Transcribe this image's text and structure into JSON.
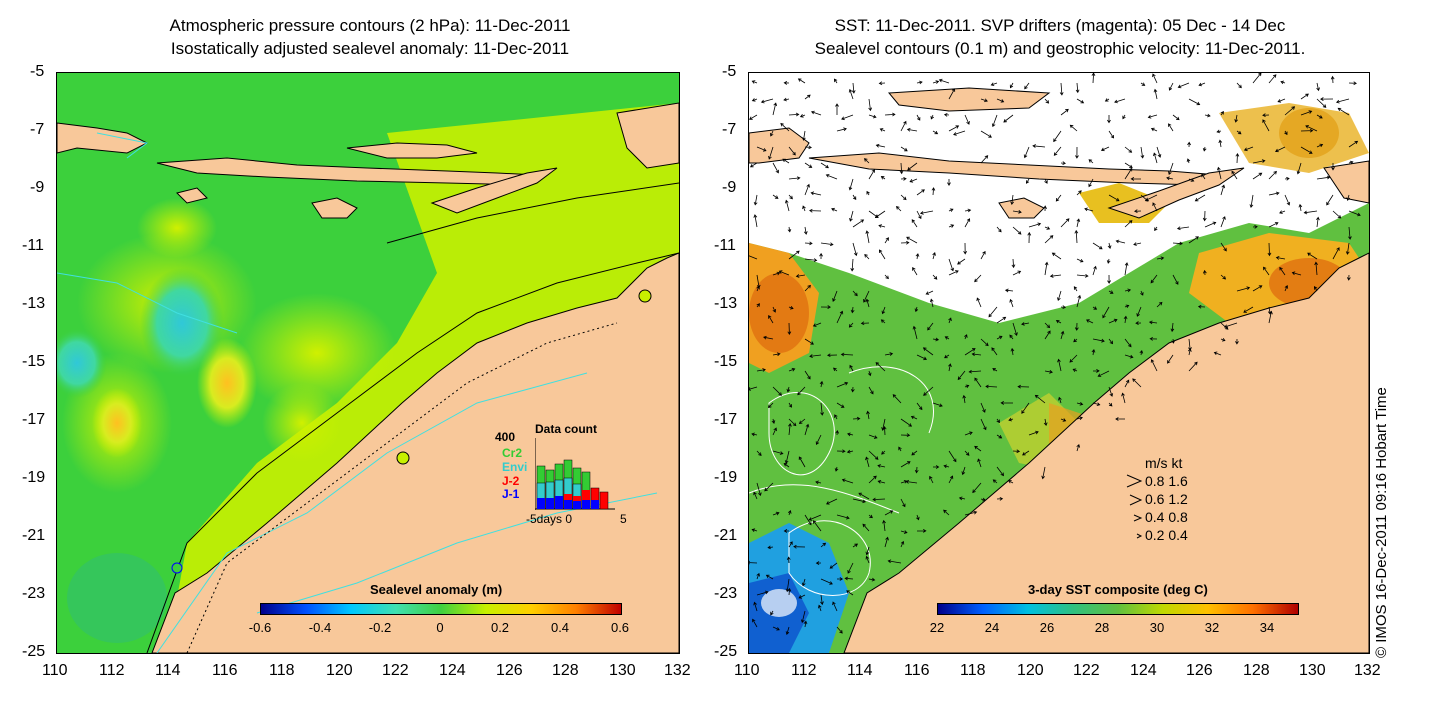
{
  "left_panel": {
    "title_line1": "Atmospheric pressure contours (2 hPa): 11-Dec-2011",
    "title_line2": "Isostatically adjusted sealevel anomaly: 11-Dec-2011",
    "colorbar": {
      "title": "Sealevel anomaly (m)",
      "labels": [
        "-0.6",
        "-0.4",
        "-0.2",
        "0",
        "0.2",
        "0.4",
        "0.6"
      ],
      "colors": [
        "#00008b",
        "#0050ff",
        "#00c8ff",
        "#40e0b0",
        "#40d040",
        "#c8f000",
        "#ffd000",
        "#ff8000",
        "#c00000"
      ]
    },
    "inset": {
      "title": "Data count",
      "y_max_label": "400",
      "series": [
        {
          "name": "Cr2",
          "color": "#33cc33"
        },
        {
          "name": "Envi",
          "color": "#33cccc"
        },
        {
          "name": "J-2",
          "color": "#ff0000"
        },
        {
          "name": "J-1",
          "color": "#0000ff"
        }
      ],
      "x_label": "-5days 0",
      "x_label_right": "5"
    }
  },
  "right_panel": {
    "title_line1": "SST: 11-Dec-2011. SVP drifters (magenta): 05 Dec - 14 Dec",
    "title_line2": "Sealevel contours (0.1 m) and geostrophic velocity: 11-Dec-2011.",
    "colorbar": {
      "title": "3-day SST composite (deg C)",
      "labels": [
        "22",
        "24",
        "26",
        "28",
        "30",
        "32",
        "34"
      ],
      "colors": [
        "#00008b",
        "#0060ff",
        "#00c0e0",
        "#30c080",
        "#60c040",
        "#c0d800",
        "#ffc000",
        "#ff7000",
        "#b00000"
      ]
    },
    "legend": {
      "header": "m/s  kt",
      "rows": [
        "0.8  1.6",
        "0.6  1.2",
        "0.4  0.8",
        "0.2  0.4"
      ]
    }
  },
  "y_ticks": [
    "-5",
    "-7",
    "-9",
    "-11",
    "-13",
    "-15",
    "-17",
    "-19",
    "-21",
    "-23",
    "-25"
  ],
  "x_ticks": [
    "110",
    "112",
    "114",
    "116",
    "118",
    "120",
    "122",
    "124",
    "126",
    "128",
    "130",
    "132"
  ],
  "credit": "© IMOS 16-Dec-2011 09:16 Hobart Time",
  "colors": {
    "land": "#f8c89a",
    "ocean_green": "#3cd03c",
    "coast_cyan": "#40e0e0"
  }
}
